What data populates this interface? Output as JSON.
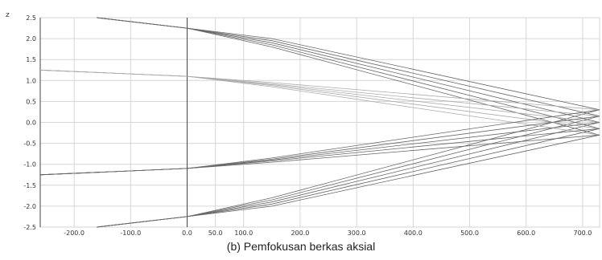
{
  "figure": {
    "caption": "(b) Pemfokusan berkas aksial"
  },
  "chart_data": {
    "type": "line",
    "title": "",
    "xlabel": "",
    "ylabel": "z",
    "xlim": [
      -260,
      730
    ],
    "ylim": [
      -2.5,
      2.5
    ],
    "x_ticks": [
      -200,
      -100,
      0,
      50,
      100,
      200,
      300,
      400,
      500,
      600,
      700
    ],
    "x_tick_labels": [
      "-200.0",
      "-100.0",
      "0.0",
      "50.0",
      "100.0",
      "200.0",
      "300.0",
      "400.0",
      "500.0",
      "600.0",
      "700.0"
    ],
    "y_ticks": [
      2.5,
      2.0,
      1.5,
      1.0,
      0.5,
      0.0,
      -0.5,
      -1.0,
      -1.5,
      -2.0,
      -2.5
    ],
    "y_tick_labels": [
      "2.5",
      "2.0",
      "1.5",
      "1.0",
      "0.5",
      "0.0",
      "-0.5",
      "-1.0",
      "-1.5",
      "-2.0",
      "-2.5"
    ],
    "grid": true,
    "colors": {
      "grid": "#d6d6d6",
      "axis": "#444444",
      "ray": "#666666",
      "ray_light": "#aaaaaa"
    },
    "series": [
      {
        "color": "ray",
        "x": [
          -160,
          0,
          150,
          730
        ],
        "y": [
          2.5,
          2.25,
          2.0,
          0.3
        ]
      },
      {
        "color": "ray",
        "x": [
          -160,
          0,
          150,
          730
        ],
        "y": [
          2.5,
          2.25,
          1.95,
          0.15
        ]
      },
      {
        "color": "ray",
        "x": [
          -160,
          0,
          150,
          730
        ],
        "y": [
          2.5,
          2.25,
          1.9,
          0.0
        ]
      },
      {
        "color": "ray",
        "x": [
          -160,
          0,
          150,
          730
        ],
        "y": [
          2.5,
          2.25,
          1.85,
          -0.15
        ]
      },
      {
        "color": "ray",
        "x": [
          -160,
          0,
          150,
          730
        ],
        "y": [
          2.5,
          2.25,
          1.8,
          -0.3
        ]
      },
      {
        "color": "ray",
        "x": [
          -160,
          0,
          150,
          730
        ],
        "y": [
          -2.5,
          -2.25,
          -2.0,
          -0.3
        ]
      },
      {
        "color": "ray",
        "x": [
          -160,
          0,
          150,
          730
        ],
        "y": [
          -2.5,
          -2.25,
          -1.95,
          -0.15
        ]
      },
      {
        "color": "ray",
        "x": [
          -160,
          0,
          150,
          730
        ],
        "y": [
          -2.5,
          -2.25,
          -1.9,
          0.0
        ]
      },
      {
        "color": "ray",
        "x": [
          -160,
          0,
          150,
          730
        ],
        "y": [
          -2.5,
          -2.25,
          -1.85,
          0.15
        ]
      },
      {
        "color": "ray",
        "x": [
          -160,
          0,
          150,
          730
        ],
        "y": [
          -2.5,
          -2.25,
          -1.8,
          0.3
        ]
      },
      {
        "color": "ray_light",
        "x": [
          -260,
          0,
          150,
          730
        ],
        "y": [
          1.25,
          1.1,
          0.95,
          0.3
        ]
      },
      {
        "color": "ray_light",
        "x": [
          -260,
          0,
          150,
          730
        ],
        "y": [
          1.25,
          1.1,
          0.92,
          0.15
        ]
      },
      {
        "color": "ray_light",
        "x": [
          -260,
          0,
          150,
          730
        ],
        "y": [
          1.25,
          1.1,
          0.9,
          0.0
        ]
      },
      {
        "color": "ray_light",
        "x": [
          -260,
          0,
          150,
          730
        ],
        "y": [
          1.25,
          1.1,
          0.88,
          -0.15
        ]
      },
      {
        "color": "ray_light",
        "x": [
          -260,
          0,
          150,
          730
        ],
        "y": [
          1.25,
          1.1,
          0.85,
          -0.3
        ]
      },
      {
        "color": "ray",
        "x": [
          -260,
          0,
          150,
          730
        ],
        "y": [
          -1.25,
          -1.1,
          -0.95,
          -0.3
        ]
      },
      {
        "color": "ray",
        "x": [
          -260,
          0,
          150,
          730
        ],
        "y": [
          -1.25,
          -1.1,
          -0.92,
          -0.15
        ]
      },
      {
        "color": "ray",
        "x": [
          -260,
          0,
          150,
          730
        ],
        "y": [
          -1.25,
          -1.1,
          -0.9,
          0.0
        ]
      },
      {
        "color": "ray",
        "x": [
          -260,
          0,
          150,
          730
        ],
        "y": [
          -1.25,
          -1.1,
          -0.88,
          0.15
        ]
      },
      {
        "color": "ray",
        "x": [
          -260,
          0,
          150,
          730
        ],
        "y": [
          -1.25,
          -1.1,
          -0.85,
          0.3
        ]
      }
    ]
  }
}
